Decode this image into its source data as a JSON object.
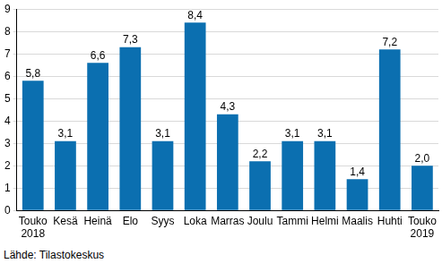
{
  "chart_data": {
    "type": "bar",
    "source": "Lähde: Tilastokeskus",
    "categories": [
      "Touko 2018",
      "Kesä",
      "Heinä",
      "Elo",
      "Syys",
      "Loka",
      "Marras",
      "Joulu",
      "Tammi",
      "Helmi",
      "Maalis",
      "Huhti",
      "Touko 2019"
    ],
    "values": [
      5.8,
      3.1,
      6.6,
      7.3,
      3.1,
      8.4,
      4.3,
      2.2,
      3.1,
      3.1,
      1.4,
      7.2,
      2.0
    ],
    "value_labels": [
      "5,8",
      "3,1",
      "6,6",
      "7,3",
      "3,1",
      "8,4",
      "4,3",
      "2,2",
      "3,1",
      "3,1",
      "1,4",
      "7,2",
      "2,0"
    ],
    "color": "#0b6fb0",
    "ylim": [
      0,
      9
    ],
    "yticks": [
      0,
      1,
      2,
      3,
      4,
      5,
      6,
      7,
      8,
      9
    ],
    "grid": true,
    "data_labels": true
  }
}
